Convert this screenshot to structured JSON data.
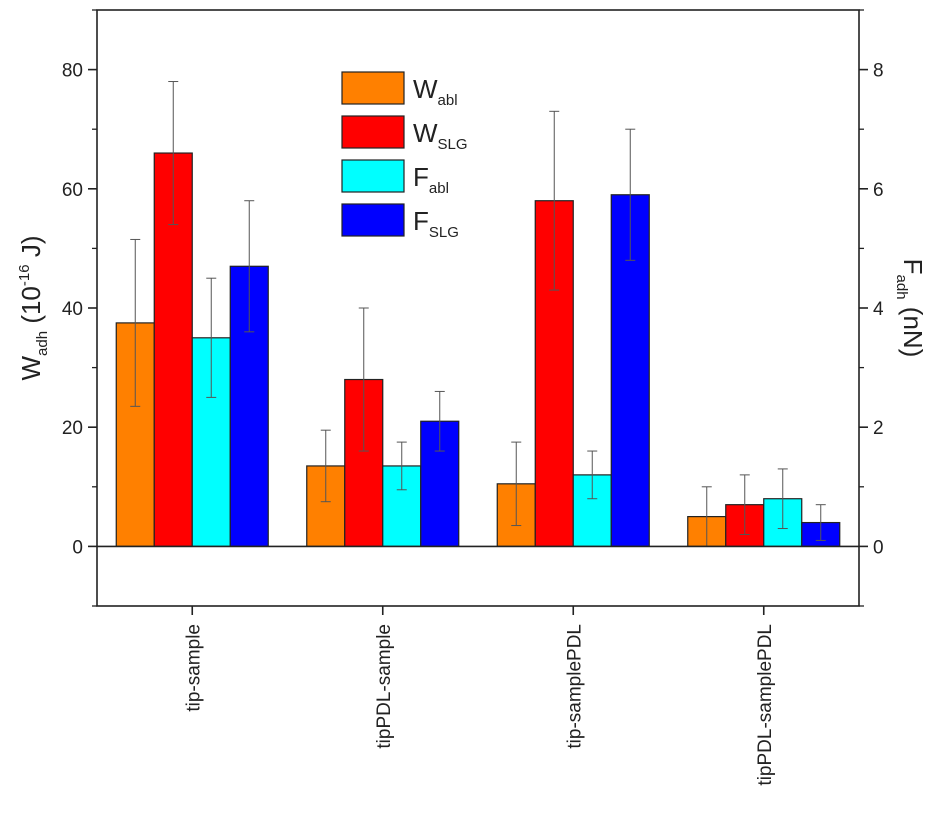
{
  "chart_data": {
    "type": "bar",
    "categories": [
      "tip-sample",
      "tipPDL-sample",
      "tip-samplePDL",
      "tipPDL-samplePDL"
    ],
    "ylim": [
      -10,
      90
    ],
    "y2lim": [
      -1,
      9
    ],
    "yticks": [
      0,
      20,
      40,
      60,
      80
    ],
    "y2ticks": [
      0,
      2,
      4,
      6,
      8
    ],
    "ylabel": {
      "main": "W",
      "sub": "adh",
      "rest_open": " (10",
      "sup": "-16",
      "rest_close": " J)"
    },
    "y2label": {
      "main": "F",
      "sub": "adh",
      "rest": " (nN)"
    },
    "legend_position": "top-center",
    "grid": false,
    "series": [
      {
        "name_main": "W",
        "name_sub": "abl",
        "axis": "left",
        "color": "#FF8000",
        "values": [
          37.5,
          13.5,
          10.5,
          5
        ],
        "errors": [
          14,
          6,
          7,
          5
        ]
      },
      {
        "name_main": "W",
        "name_sub": "SLG",
        "axis": "left",
        "color": "#FF0000",
        "values": [
          66,
          28,
          58,
          7
        ],
        "errors": [
          12,
          12,
          15,
          5
        ]
      },
      {
        "name_main": "F",
        "name_sub": "abl",
        "axis": "right",
        "color": "#00FFFF",
        "values": [
          3.5,
          1.35,
          1.2,
          0.8
        ],
        "errors": [
          1.0,
          0.4,
          0.4,
          0.5
        ]
      },
      {
        "name_main": "F",
        "name_sub": "SLG",
        "axis": "right",
        "color": "#0000FF",
        "values": [
          4.7,
          2.1,
          5.9,
          0.4
        ],
        "errors": [
          1.1,
          0.5,
          1.1,
          0.3
        ]
      }
    ]
  }
}
